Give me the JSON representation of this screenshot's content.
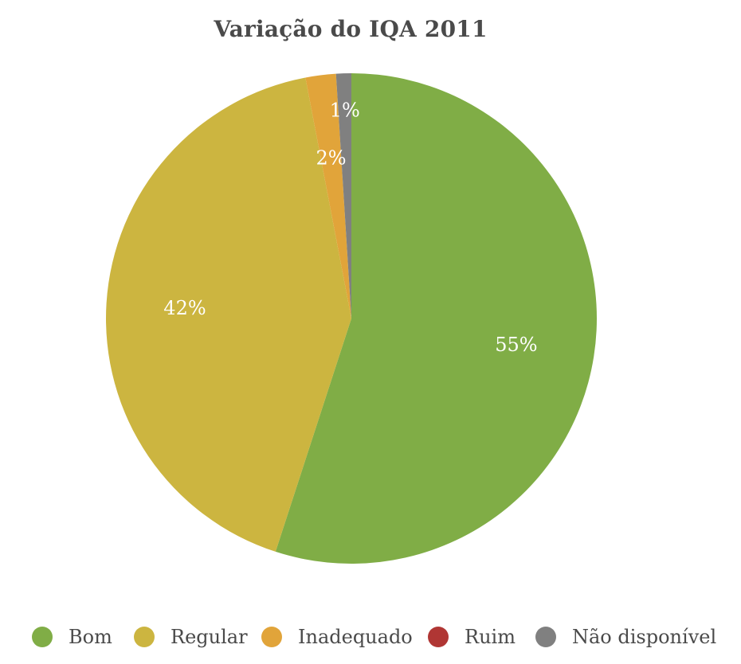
{
  "chart_data": {
    "type": "pie",
    "title": "Variação do IQA 2011",
    "categories": [
      "Bom",
      "Regular",
      "Inadequado",
      "Ruim",
      "Não disponível"
    ],
    "values": [
      55,
      42,
      2,
      0,
      1
    ],
    "data_labels": [
      "55%",
      "42%",
      "2%",
      "",
      "1%"
    ],
    "colors": [
      "#80ad46",
      "#ccb540",
      "#e1a43a",
      "#b03634",
      "#808080"
    ],
    "legend_position": "bottom"
  }
}
